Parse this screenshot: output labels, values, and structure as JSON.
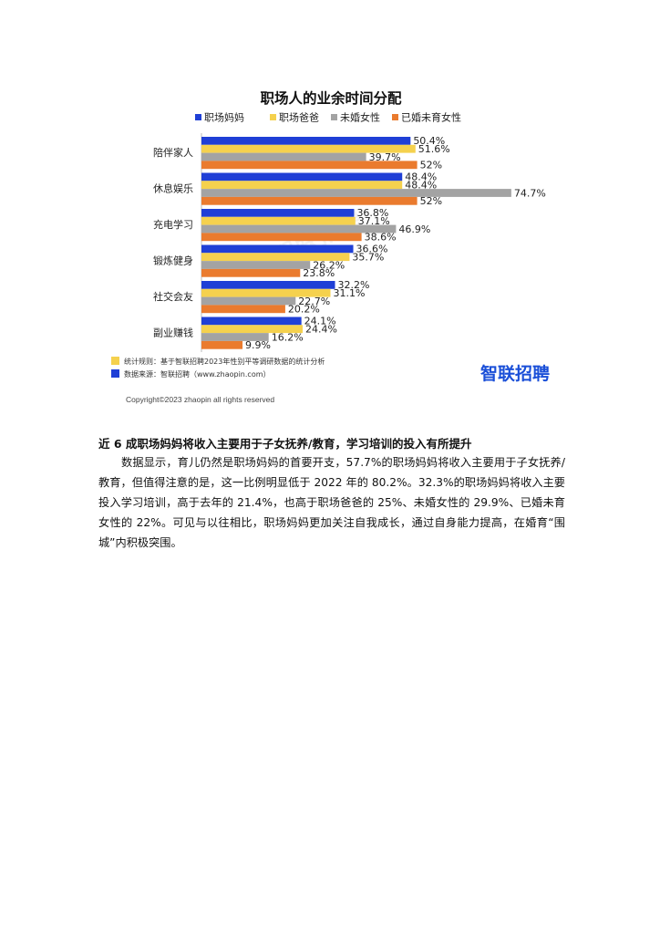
{
  "chart_data": {
    "type": "bar",
    "orientation": "horizontal",
    "title": "职场人的业余时间分配",
    "categories": [
      "陪伴家人",
      "休息娱乐",
      "充电学习",
      "锻炼健身",
      "社交会友",
      "副业赚钱"
    ],
    "series": [
      {
        "name": "职场妈妈",
        "color": "#1f3fd6",
        "values": [
          50.4,
          48.4,
          36.8,
          36.6,
          32.2,
          24.1
        ],
        "labels": [
          "50.4%",
          "48.4%",
          "36.8%",
          "36.6%",
          "32.2%",
          "24.1%"
        ]
      },
      {
        "name": "职场爸爸",
        "color": "#f5d14e",
        "values": [
          51.6,
          48.4,
          37.1,
          35.7,
          31.1,
          24.4
        ],
        "labels": [
          "51.6%",
          "48.4%",
          "37.1%",
          "35.7%",
          "31.1%",
          "24.4%"
        ]
      },
      {
        "name": "未婚女性",
        "color": "#a3a3a3",
        "values": [
          39.7,
          74.7,
          46.9,
          26.2,
          22.7,
          16.2
        ],
        "labels": [
          "39.7%",
          "74.7%",
          "46.9%",
          "26.2%",
          "22.7%",
          "16.2%"
        ]
      },
      {
        "name": "已婚未育女性",
        "color": "#ea7b2e",
        "values": [
          52,
          52,
          38.6,
          23.8,
          20.2,
          9.9
        ],
        "labels": [
          "52%",
          "52%",
          "38.6%",
          "23.8%",
          "20.2%",
          "9.9%"
        ]
      }
    ],
    "legend": "top",
    "grid": false,
    "xlim": [
      0,
      100
    ]
  },
  "notes": [
    {
      "text": "统计规则：基于智联招聘2023年性别平等调研数据的统计分析",
      "color": "#f5d14e"
    },
    {
      "text": "数据来源：智联招聘（www.zhaopin.com）",
      "color": "#1f3fd6"
    }
  ],
  "logo": {
    "text": "智联招聘",
    "color": "#1a4fd8"
  },
  "watermark": "智联招聘",
  "copyright": "Copyright©2023 zhaopin all rights reserved",
  "section_heading": "近 6 成职场妈妈将收入主要用于子女抚养/教育，学习培训的投入有所提升",
  "paragraph": "数据显示，育儿仍然是职场妈妈的首要开支，57.7%的职场妈妈将收入主要用于子女抚养/教育，但值得注意的是，这一比例明显低于 2022 年的 80.2%。32.3%的职场妈妈将收入主要投入学习培训，高于去年的 21.4%，也高于职场爸爸的 25%、未婚女性的 29.9%、已婚未育女性的 22%。可见与以往相比，职场妈妈更加关注自我成长，通过自身能力提高，在婚育“围城”内积极突围。"
}
